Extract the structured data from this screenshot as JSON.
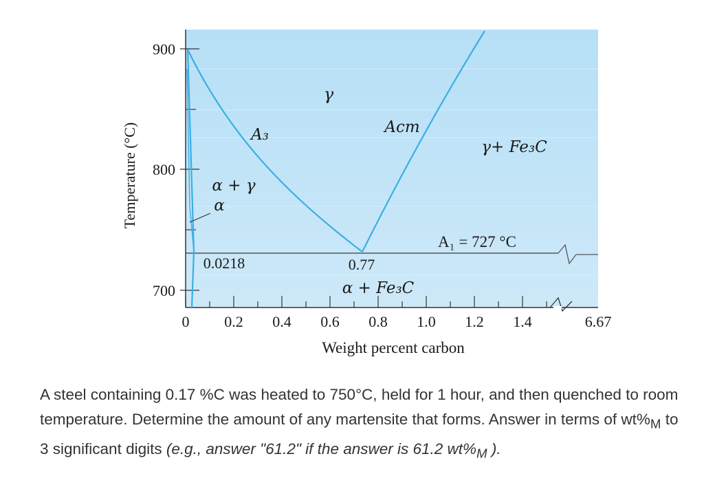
{
  "diagram": {
    "y_axis_label": "Temperature (°C)",
    "x_axis_label": "Weight percent carbon",
    "y_ticks": [
      "900",
      "800",
      "700"
    ],
    "x_ticks": [
      "0",
      "0.2",
      "0.4",
      "0.6",
      "0.8",
      "1.0",
      "1.2",
      "1.4"
    ],
    "x_break_tick": "6.67",
    "regions": {
      "gamma": "γ",
      "alpha_gamma": "α + γ",
      "alpha": "α",
      "gamma_fe3c": "γ+ Fe₃C",
      "alpha_fe3c": "α + Fe₃C"
    },
    "line_labels": {
      "a3": "A₃",
      "acm": "Acm",
      "a1": "A₁ = 727 °C"
    },
    "points": {
      "ferrite_max": "0.0218",
      "eutectoid": "0.77"
    },
    "colors": {
      "background": "#bfe3f7",
      "phase_line": "#3aaee6",
      "a1_line": "#555555",
      "axis": "#333333"
    }
  },
  "question": {
    "text1": "A steel containing 0.17 %C was heated to 750°C, held for 1 hour, and then quenched to room temperature. Determine the amount of any martensite that forms.  Answer in terms of wt%",
    "sub1": "M",
    "text2": " to 3 significant digits ",
    "italic_text": "(e.g., answer \"61.2\" if the answer is 61.2 wt%",
    "sub2": "M",
    "italic_end": " )."
  }
}
